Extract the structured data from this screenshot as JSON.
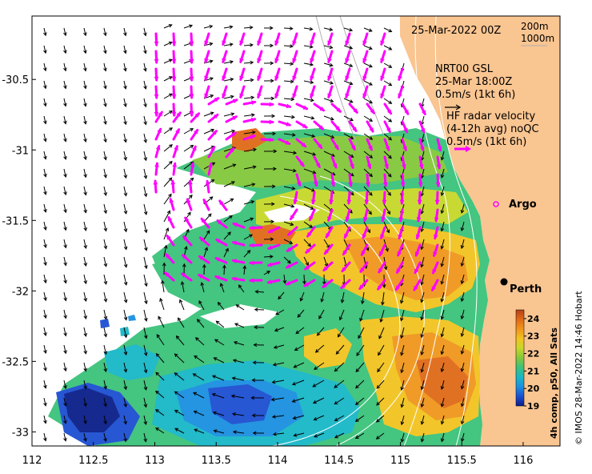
{
  "map": {
    "x_ticks": [
      "112",
      "112.5",
      "113",
      "113.5",
      "114",
      "114.5",
      "115",
      "115.5",
      "116"
    ],
    "y_ticks": [
      "-30.5",
      "-31",
      "-31.5",
      "-32",
      "-32.5",
      "-33"
    ],
    "x_range": [
      112,
      116.3
    ],
    "y_range": [
      -33.1,
      -30.05
    ],
    "contour_depths": [
      "200m",
      "1000m"
    ],
    "date_label": "25-Mar-2022 00Z",
    "legend": {
      "model_name": "NRT00 GSL",
      "model_time": "25-Mar 18:00Z",
      "model_scale": "0.5m/s (1kt 6h)",
      "radar_line1": "HF radar velocity",
      "radar_line2": "(4-12h avg) noQC",
      "radar_scale": "0.5m/s (1kt 6h)"
    },
    "places": [
      {
        "name": "Argo",
        "lon": 115.8,
        "lat": -31.45
      },
      {
        "name": "Perth",
        "lon": 115.86,
        "lat": -31.95
      }
    ],
    "colorbar": {
      "ticks": [
        "24",
        "23",
        "22",
        "21",
        "20",
        "19"
      ],
      "min": 19,
      "max": 24.5,
      "label": "4h comp, p50, All Sats"
    },
    "credit": "© IMOS 28-Mar-2022 14:46 Hobart",
    "colors": {
      "land": "#f9c591",
      "ocean": "#ffffff",
      "radar_arrow": "#ff00ff",
      "model_arrow": "#000000",
      "contour": "#ffffff",
      "contour_land": "#b0b0b0"
    },
    "sst_palette": [
      "#0a1e8a",
      "#1c4fd1",
      "#1a8fe0",
      "#18b7c7",
      "#3bc27a",
      "#82c83a",
      "#c7d72a",
      "#f2c31f",
      "#f0961c",
      "#e06a17",
      "#b4411a"
    ]
  }
}
